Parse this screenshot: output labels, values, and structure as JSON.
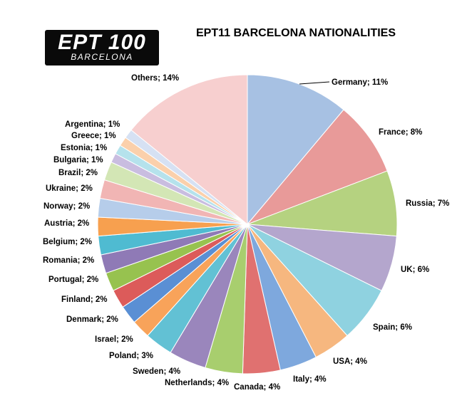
{
  "logo": {
    "main": "EPT 100",
    "sub": "BARCELONA"
  },
  "chart_data": {
    "type": "pie",
    "title": "EPT11 BARCELONA NATIONALITIES",
    "slices": [
      {
        "label": "Germany; 11%",
        "value": 11,
        "color": "#a7c1e3"
      },
      {
        "label": "France; 8%",
        "value": 8,
        "color": "#e89a99"
      },
      {
        "label": "Russia; 7%",
        "value": 7,
        "color": "#b5d280"
      },
      {
        "label": "UK; 6%",
        "value": 6,
        "color": "#b4a6cd"
      },
      {
        "label": "Spain; 6%",
        "value": 6,
        "color": "#8fd2e0"
      },
      {
        "label": "USA; 4%",
        "value": 4,
        "color": "#f6b77f"
      },
      {
        "label": "Italy; 4%",
        "value": 4,
        "color": "#7ea8dd"
      },
      {
        "label": "Canada; 4%",
        "value": 4,
        "color": "#e07170"
      },
      {
        "label": "Netherlands; 4%",
        "value": 4,
        "color": "#a8ce6e"
      },
      {
        "label": "Sweden; 4%",
        "value": 4,
        "color": "#9a86bc"
      },
      {
        "label": "Poland; 3%",
        "value": 3,
        "color": "#62c1d4"
      },
      {
        "label": "Israel; 2%",
        "value": 2,
        "color": "#f8a35a"
      },
      {
        "label": "Denmark; 2%",
        "value": 2,
        "color": "#5a8fd4"
      },
      {
        "label": "Finland; 2%",
        "value": 2,
        "color": "#dc5b5a"
      },
      {
        "label": "Portugal; 2%",
        "value": 2,
        "color": "#97c24f"
      },
      {
        "label": "Romania; 2%",
        "value": 2,
        "color": "#8f7ab6"
      },
      {
        "label": "Belgium; 2%",
        "value": 2,
        "color": "#4fbbd1"
      },
      {
        "label": "Austria; 2%",
        "value": 2,
        "color": "#f7a04f"
      },
      {
        "label": "Norway; 2%",
        "value": 2,
        "color": "#b6cdea"
      },
      {
        "label": "Ukraine; 2%",
        "value": 2,
        "color": "#f1b5b4"
      },
      {
        "label": "Brazil; 2%",
        "value": 2,
        "color": "#d3e6b5"
      },
      {
        "label": "Bulgaria; 1%",
        "value": 1,
        "color": "#c9bde0"
      },
      {
        "label": "Estonia; 1%",
        "value": 1,
        "color": "#b5e2ec"
      },
      {
        "label": "Greece; 1%",
        "value": 1,
        "color": "#fbd0ab"
      },
      {
        "label": "Argentina; 1%",
        "value": 1,
        "color": "#d6e1f3"
      },
      {
        "label": "Others; 14%",
        "value": 14,
        "color": "#f7cfcf"
      }
    ]
  }
}
